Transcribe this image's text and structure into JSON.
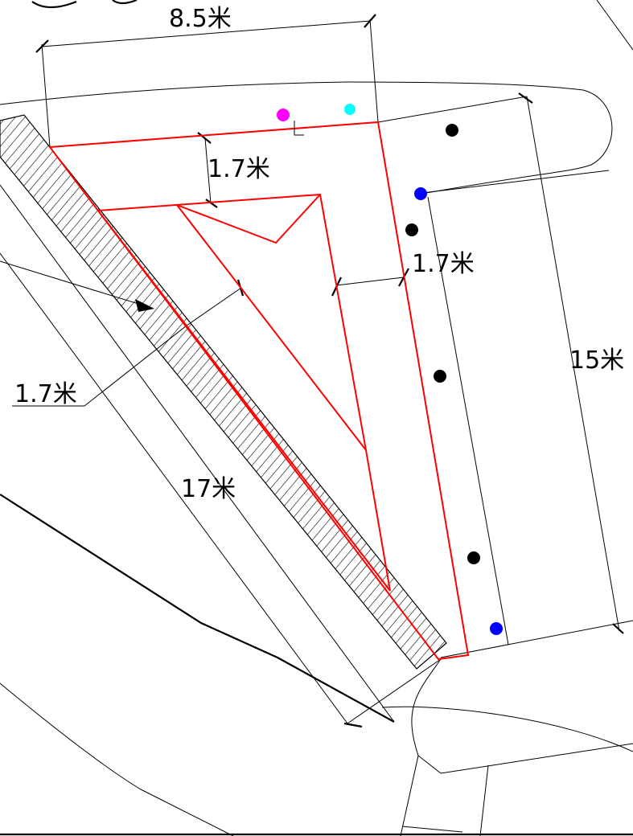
{
  "dimensions": {
    "top_width": "8.5米",
    "inner_offset_top": "1.7米",
    "inner_offset_right": "1.7米",
    "inner_offset_left": "1.7米",
    "right_depth": "15米",
    "diagonal_length": "17米"
  },
  "colors": {
    "boundary": "#ff0000",
    "lines": "#000000",
    "marker_magenta": "#ff00ff",
    "marker_cyan": "#00ffff",
    "marker_blue": "#0000ff",
    "marker_black": "#000000"
  }
}
